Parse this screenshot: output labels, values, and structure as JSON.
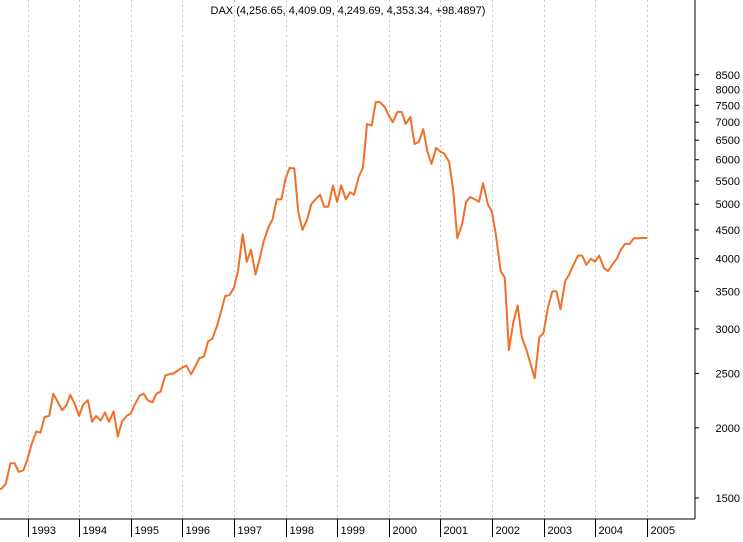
{
  "chart_data": {
    "type": "line",
    "title": "DAX (4,256.65, 4,409.09, 4,249.69, 4,353.34, +98.4897)",
    "y_scale": "log",
    "ylim": [
      1380,
      8900
    ],
    "yticks": [
      1500,
      2000,
      2500,
      3000,
      3500,
      4000,
      4500,
      5000,
      5500,
      6000,
      6500,
      7000,
      7500,
      8000,
      8500
    ],
    "x_range": [
      1992.0,
      2005.5
    ],
    "x_ticks": [
      {
        "label": "2",
        "year": 1992.0
      },
      {
        "label": "1993",
        "year": 1993
      },
      {
        "label": "1994",
        "year": 1994
      },
      {
        "label": "1995",
        "year": 1995
      },
      {
        "label": "1996",
        "year": 1996
      },
      {
        "label": "1997",
        "year": 1997
      },
      {
        "label": "1998",
        "year": 1998
      },
      {
        "label": "1999",
        "year": 1999
      },
      {
        "label": "2000",
        "year": 2000
      },
      {
        "label": "2001",
        "year": 2001
      },
      {
        "label": "2002",
        "year": 2002
      },
      {
        "label": "2003",
        "year": 2003
      },
      {
        "label": "2004",
        "year": 2004
      },
      {
        "label": "2005",
        "year": 2005
      }
    ],
    "grid": "vertical dotted",
    "line_color": "#F07028",
    "series": [
      {
        "x": [
          1992.0,
          1992.08,
          1992.17,
          1992.25,
          1992.33,
          1992.42,
          1992.5,
          1992.58,
          1992.67,
          1992.75,
          1992.83,
          1992.92,
          1993.0,
          1993.08,
          1993.17,
          1993.25,
          1993.33,
          1993.42,
          1993.5,
          1993.58,
          1993.67,
          1993.75,
          1993.83,
          1993.92,
          1994.0,
          1994.08,
          1994.17,
          1994.25,
          1994.33,
          1994.42,
          1994.5,
          1994.58,
          1994.67,
          1994.75,
          1994.83,
          1994.92,
          1995.0,
          1995.08,
          1995.17,
          1995.25,
          1995.33,
          1995.42,
          1995.5,
          1995.58,
          1995.67,
          1995.75,
          1995.83,
          1995.92,
          1996.0,
          1996.08,
          1996.17,
          1996.25,
          1996.33,
          1996.42,
          1996.5,
          1996.58,
          1996.67,
          1996.75,
          1996.83,
          1996.92,
          1997.0,
          1997.08,
          1997.17,
          1997.25,
          1997.33,
          1997.42,
          1997.5,
          1997.58,
          1997.67,
          1997.75,
          1997.83,
          1997.92,
          1998.0,
          1998.08,
          1998.17,
          1998.25,
          1998.33,
          1998.42,
          1998.5,
          1998.58,
          1998.67,
          1998.75,
          1998.83,
          1998.92,
          1999.0,
          1999.08,
          1999.17,
          1999.25,
          1999.33,
          1999.42,
          1999.5,
          1999.58,
          1999.67,
          1999.75,
          1999.83,
          1999.92,
          2000.0,
          2000.08,
          2000.17,
          2000.25,
          2000.33,
          2000.42,
          2000.5,
          2000.58,
          2000.67,
          2000.75,
          2000.83,
          2000.92,
          2001.0,
          2001.08,
          2001.17,
          2001.25,
          2001.33,
          2001.42,
          2001.5,
          2001.58,
          2001.67,
          2001.75,
          2001.83,
          2001.92,
          2002.0,
          2002.08,
          2002.17,
          2002.25,
          2002.33,
          2002.42,
          2002.5,
          2002.58,
          2002.67,
          2002.75,
          2002.83,
          2002.92,
          2003.0,
          2003.08,
          2003.17,
          2003.25,
          2003.33,
          2003.42,
          2003.5,
          2003.58,
          2003.67,
          2003.75,
          2003.83,
          2003.92,
          2004.0,
          2004.08,
          2004.17,
          2004.25,
          2004.33,
          2004.42,
          2004.5,
          2004.58,
          2004.67,
          2004.75,
          2004.83,
          2004.92,
          2005.0
        ],
        "values": [
          1720,
          1620,
          1560,
          1480,
          1510,
          1550,
          1560,
          1590,
          1730,
          1730,
          1670,
          1680,
          1760,
          1870,
          1970,
          1960,
          2090,
          2100,
          2300,
          2230,
          2150,
          2190,
          2290,
          2200,
          2100,
          2200,
          2240,
          2050,
          2100,
          2060,
          2130,
          2050,
          2140,
          1930,
          2050,
          2100,
          2120,
          2200,
          2280,
          2300,
          2240,
          2220,
          2300,
          2320,
          2480,
          2490,
          2500,
          2530,
          2560,
          2580,
          2490,
          2570,
          2660,
          2680,
          2850,
          2880,
          3030,
          3220,
          3430,
          3450,
          3550,
          3800,
          4420,
          3950,
          4150,
          3750,
          4000,
          4300,
          4550,
          4700,
          5100,
          5100,
          5550,
          5800,
          5790,
          4830,
          4500,
          4700,
          5000,
          5100,
          5200,
          4950,
          4950,
          5400,
          5050,
          5400,
          5100,
          5250,
          5200,
          5600,
          5800,
          6950,
          6900,
          7600,
          7600,
          7450,
          7200,
          7000,
          7300,
          7300,
          6950,
          7150,
          6400,
          6450,
          6800,
          6200,
          5900,
          6300,
          6200,
          6150,
          5950,
          5300,
          4350,
          4600,
          5050,
          5150,
          5100,
          5050,
          5450,
          5000,
          4850,
          4400,
          3800,
          3700,
          2750,
          3100,
          3300,
          2900,
          2750,
          2600,
          2450,
          2900,
          2950,
          3250,
          3500,
          3500,
          3250,
          3650,
          3750,
          3900,
          4050,
          4050,
          3900,
          4000,
          3950,
          4050,
          3850,
          3800,
          3900,
          4000,
          4150,
          4250,
          4250,
          4350,
          4350,
          4353.34,
          4353.34
        ]
      }
    ]
  }
}
